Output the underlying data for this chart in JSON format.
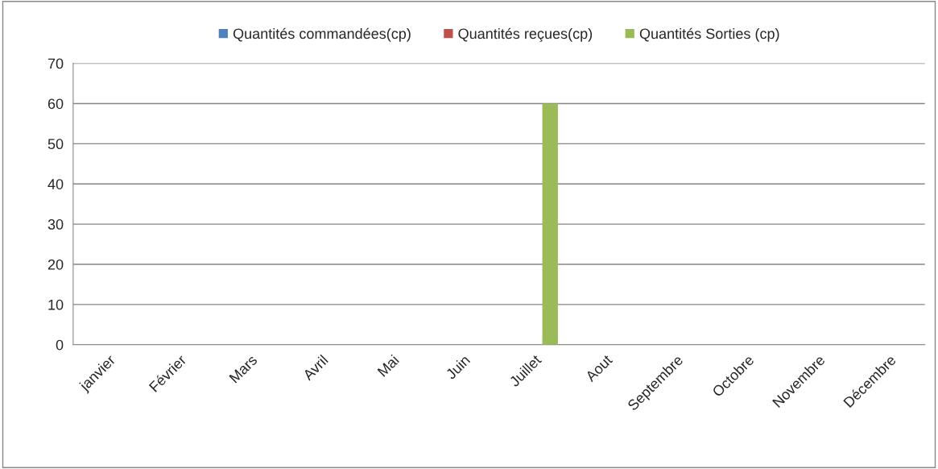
{
  "chart_data": {
    "type": "bar",
    "categories": [
      "janvier",
      "Février",
      "Mars",
      "Avril",
      "Mai",
      "Juin",
      "Juillet",
      "Aout",
      "Septembre",
      "Octobre",
      "Novembre",
      "Décembre"
    ],
    "series": [
      {
        "name": "Quantités commandées(cp)",
        "color": "#4f81bd",
        "values": [
          0,
          0,
          0,
          0,
          0,
          0,
          0,
          0,
          0,
          0,
          0,
          0
        ]
      },
      {
        "name": "Quantités reçues(cp)",
        "color": "#c0504d",
        "values": [
          0,
          0,
          0,
          0,
          0,
          0,
          0,
          0,
          0,
          0,
          0,
          0
        ]
      },
      {
        "name": "Quantités Sorties (cp)",
        "color": "#9bbb59",
        "values": [
          0,
          0,
          0,
          0,
          0,
          0,
          60,
          0,
          0,
          0,
          0,
          0
        ]
      }
    ],
    "ylim": [
      0,
      70
    ],
    "yticks": [
      0,
      10,
      20,
      30,
      40,
      50,
      60,
      70
    ],
    "grid": "y",
    "legend": "top"
  }
}
